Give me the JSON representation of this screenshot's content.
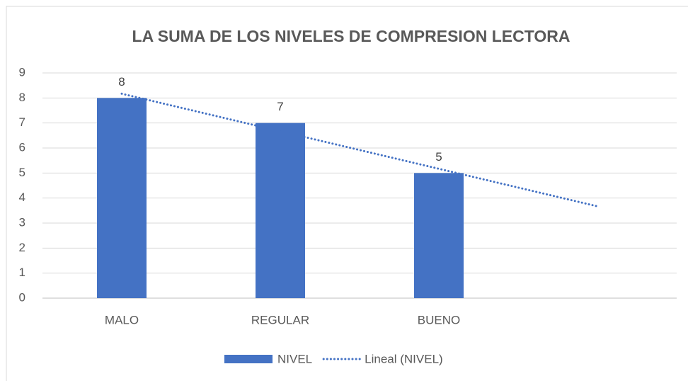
{
  "chart_data": {
    "type": "bar",
    "title": "LA SUMA DE LOS NIVELES DE COMPRESION LECTORA",
    "categories": [
      "MALO",
      "REGULAR",
      "BUENO",
      null
    ],
    "series": [
      {
        "name": "NIVEL",
        "color": "#4472c4",
        "values": [
          8,
          7,
          5,
          null
        ]
      },
      {
        "name": "Lineal (NIVEL)",
        "color": "#4472c4",
        "type": "trendline",
        "values": [
          8.17,
          6.67,
          5.17,
          3.67
        ]
      }
    ],
    "ylim": [
      0,
      9
    ],
    "yticks": [
      0,
      1,
      2,
      3,
      4,
      5,
      6,
      7,
      8,
      9
    ],
    "grid": true,
    "legend": "bottom"
  }
}
